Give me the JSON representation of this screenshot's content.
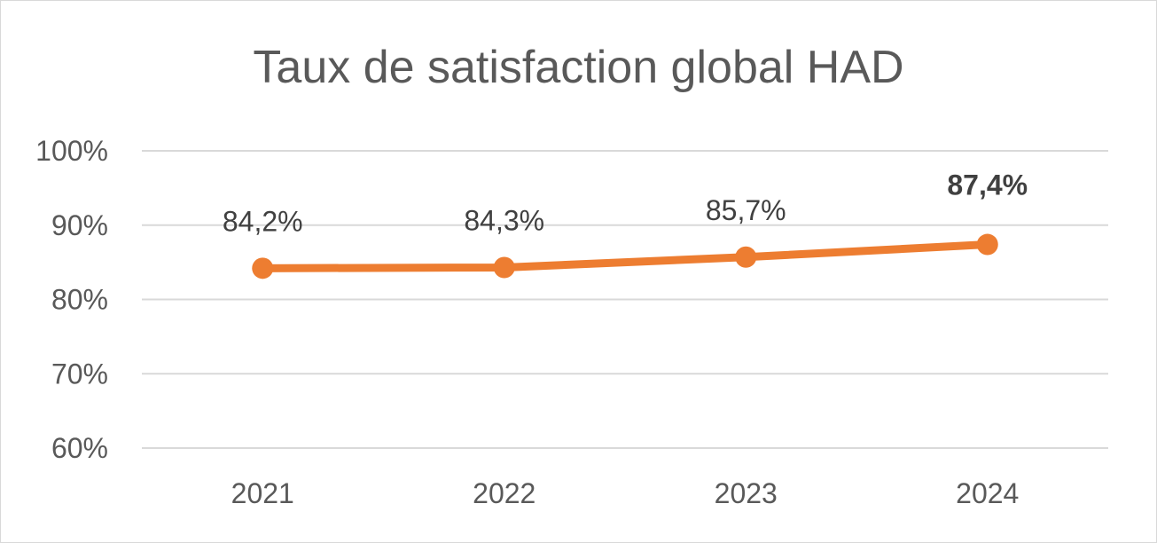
{
  "chart_data": {
    "type": "line",
    "title": "Taux de satisfaction global HAD",
    "categories": [
      "2021",
      "2022",
      "2023",
      "2024"
    ],
    "series": [
      {
        "values": [
          84.2,
          84.3,
          85.7,
          87.4
        ],
        "labels": [
          "84,2%",
          "84,3%",
          "85,7%",
          "87,4%"
        ],
        "color": "#ED7D31"
      }
    ],
    "ylim": [
      60,
      100
    ],
    "yticks": [
      60,
      70,
      80,
      90,
      100
    ],
    "ytick_labels": [
      "60%",
      "70%",
      "80%",
      "90%",
      "100%"
    ],
    "grid": true,
    "highlight_last_label_bold": true
  }
}
